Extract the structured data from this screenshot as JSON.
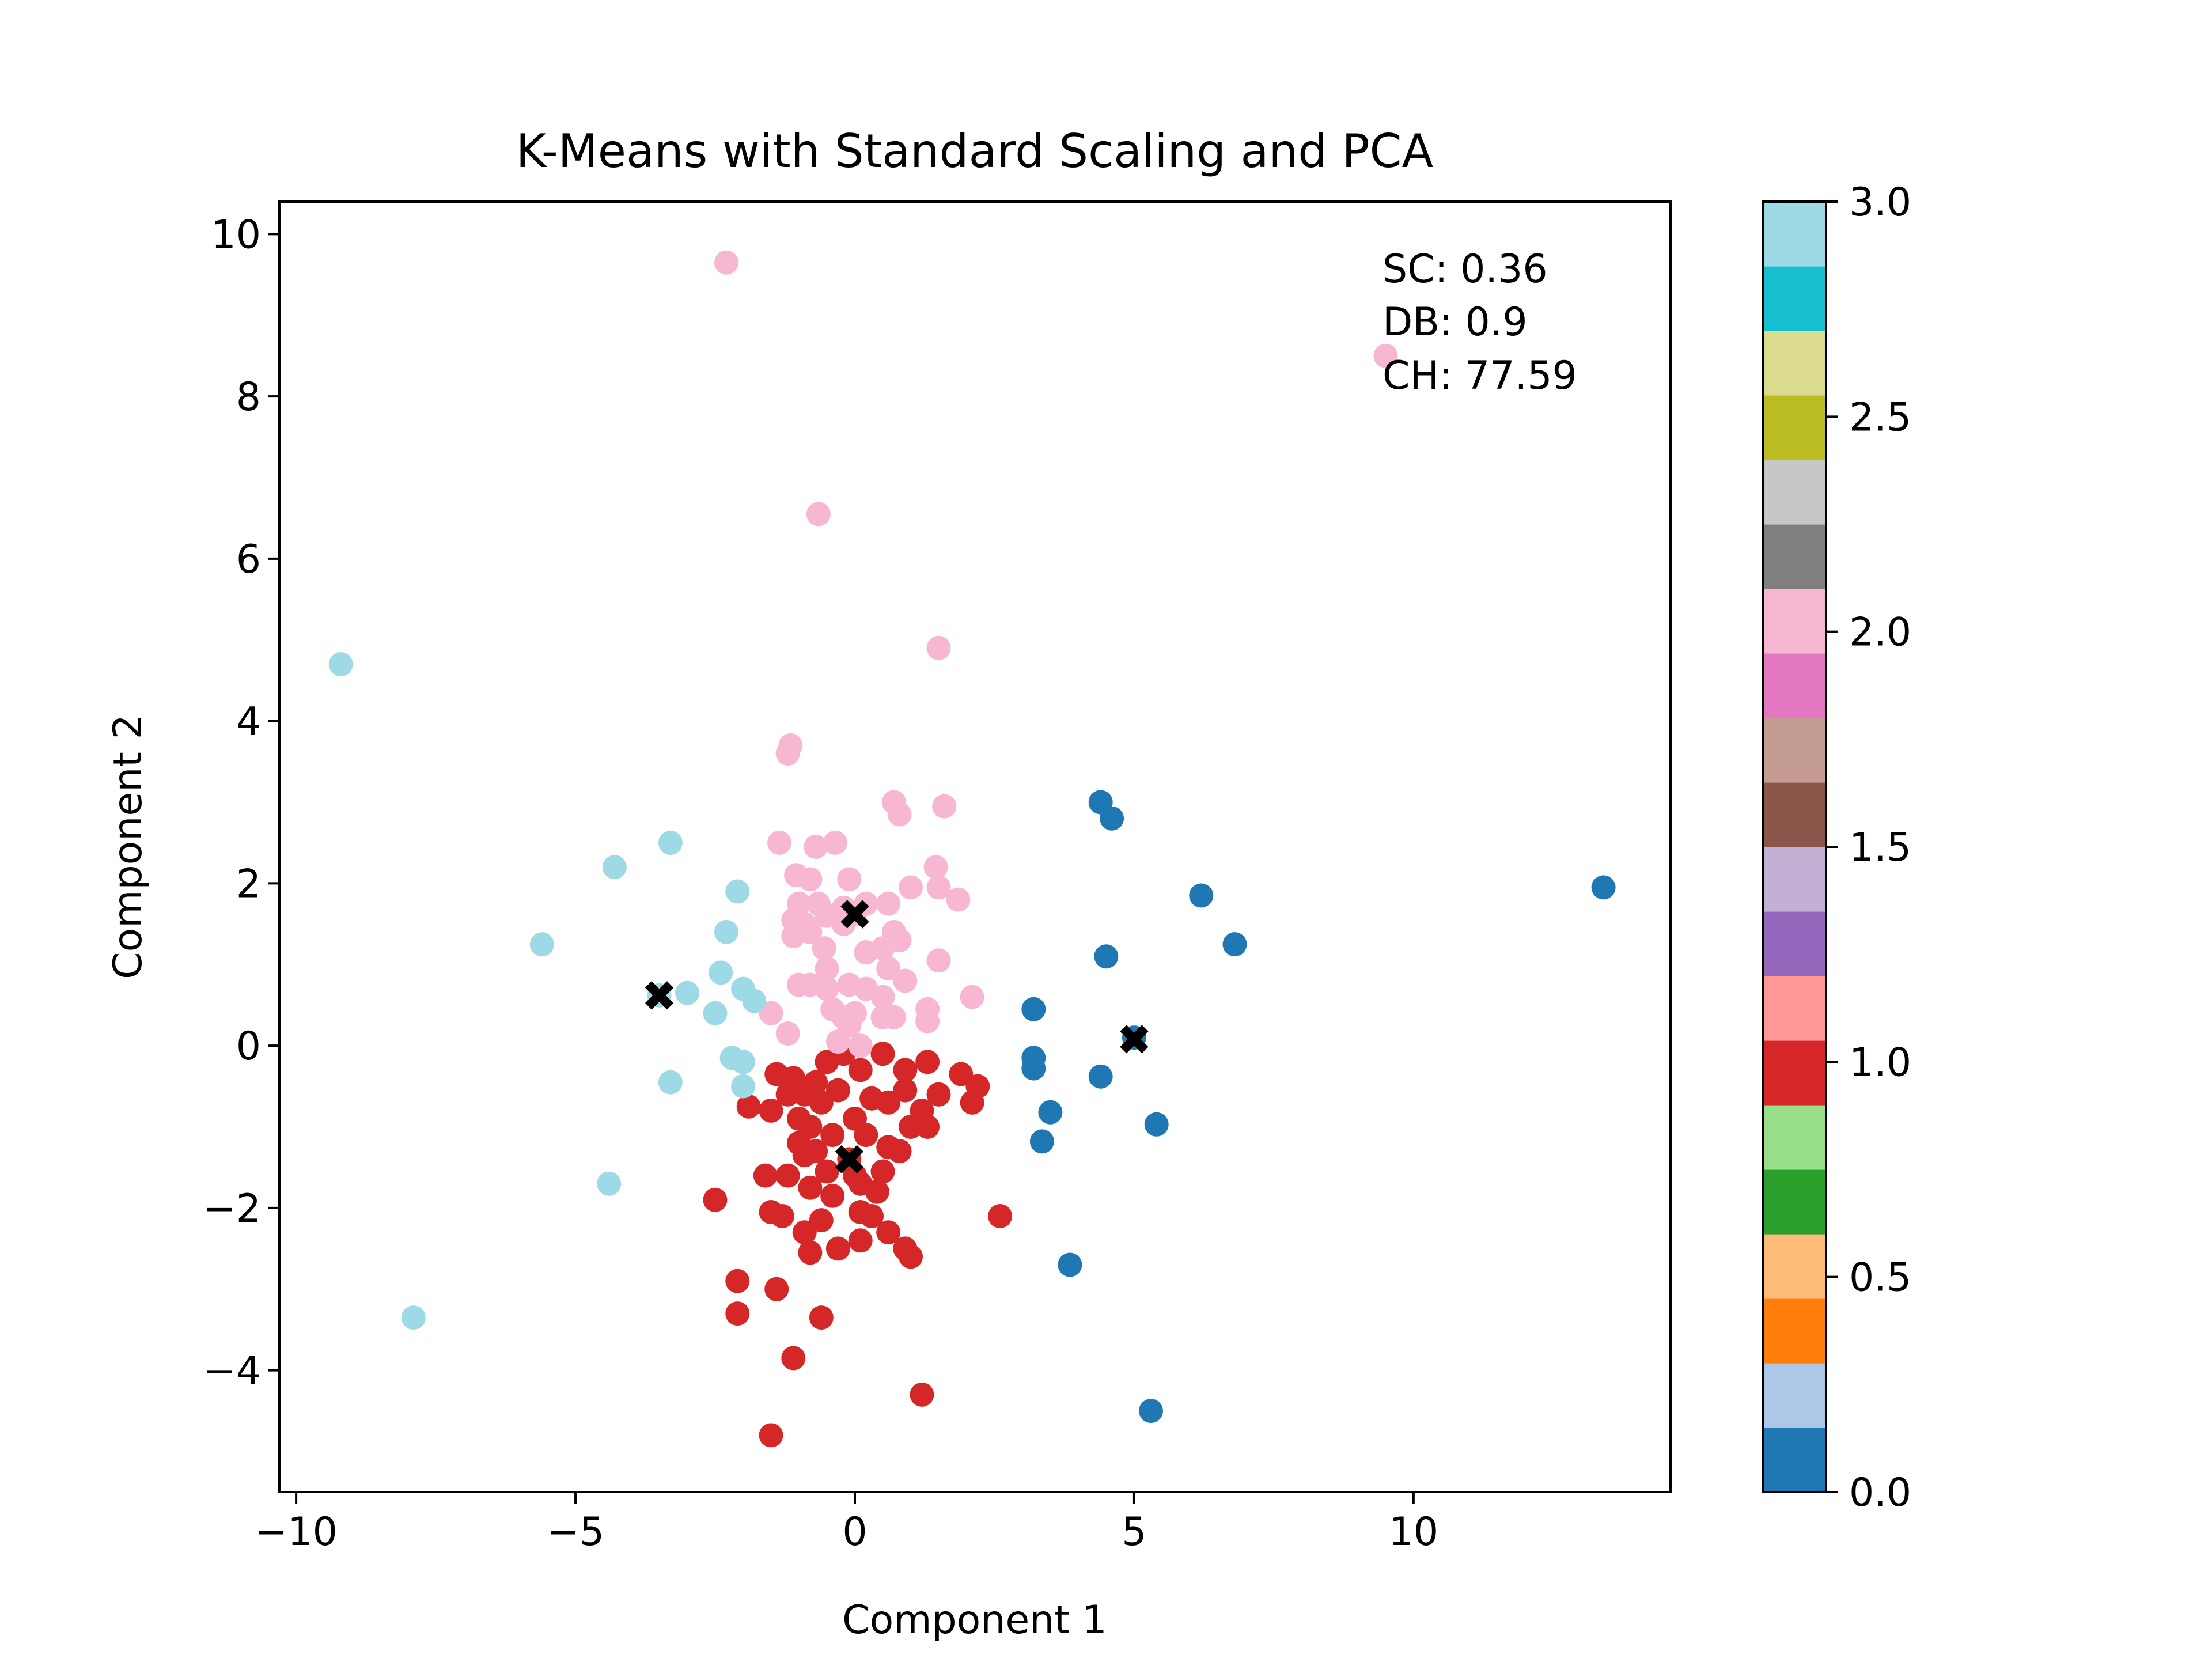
{
  "chart_data": {
    "type": "scatter",
    "title": "K-Means with Standard Scaling and PCA",
    "xlabel": "Component 1",
    "ylabel": "Component 2",
    "xlim": [
      -10.3,
      14.6
    ],
    "ylim": [
      -5.5,
      10.4
    ],
    "xticks": [
      -10,
      -5,
      0,
      5,
      10
    ],
    "yticks": [
      -4,
      -2,
      0,
      2,
      4,
      6,
      8,
      10
    ],
    "grid": false,
    "legend": "none",
    "metrics": [
      "SC: 0.36",
      "DB: 0.9",
      "CH: 77.59"
    ],
    "colorbar": {
      "min": 0.0,
      "max": 3.0,
      "ticks": [
        "0.0",
        "0.5",
        "1.0",
        "1.5",
        "2.0",
        "2.5",
        "3.0"
      ],
      "colormap": "tab20",
      "colors": [
        "#1f77b4",
        "#aec7e8",
        "#ff7f0e",
        "#ffbb78",
        "#2ca02c",
        "#98df8a",
        "#d62728",
        "#ff9896",
        "#9467bd",
        "#c5b0d5",
        "#8c564b",
        "#c49c94",
        "#e377c2",
        "#f7b6d2",
        "#7f7f7f",
        "#c7c7c7",
        "#bcbd22",
        "#dbdb8d",
        "#17becf",
        "#9edae5"
      ]
    },
    "cluster_colors": {
      "0": "#1f77b4",
      "1": "#d62728",
      "2": "#f7b6d2",
      "3": "#9edae5"
    },
    "centroid_color": "#000000",
    "centroids": [
      [
        -3.5,
        0.62
      ],
      [
        -0.1,
        -1.4
      ],
      [
        0.0,
        1.62
      ],
      [
        5.0,
        0.08
      ]
    ],
    "series": [
      {
        "cluster": 0,
        "points": [
          [
            4.4,
            3.0
          ],
          [
            4.6,
            2.8
          ],
          [
            13.4,
            1.95
          ],
          [
            6.2,
            1.85
          ],
          [
            6.8,
            1.25
          ],
          [
            4.5,
            1.1
          ],
          [
            3.2,
            0.45
          ],
          [
            5.0,
            0.1
          ],
          [
            3.2,
            -0.15
          ],
          [
            3.2,
            -0.28
          ],
          [
            4.4,
            -0.38
          ],
          [
            3.5,
            -0.82
          ],
          [
            5.4,
            -0.97
          ],
          [
            3.35,
            -1.18
          ],
          [
            3.85,
            -2.7
          ],
          [
            5.3,
            -4.5
          ]
        ]
      },
      {
        "cluster": 1,
        "points": [
          [
            -1.4,
            -0.35
          ],
          [
            -1.1,
            -0.4
          ],
          [
            -0.9,
            -0.6
          ],
          [
            -0.7,
            -0.45
          ],
          [
            -0.5,
            -0.2
          ],
          [
            -0.2,
            -0.1
          ],
          [
            0.1,
            -0.3
          ],
          [
            0.5,
            -0.1
          ],
          [
            0.9,
            -0.3
          ],
          [
            1.3,
            -0.2
          ],
          [
            1.9,
            -0.35
          ],
          [
            2.2,
            -0.5
          ],
          [
            -1.9,
            -0.75
          ],
          [
            -1.5,
            -0.8
          ],
          [
            -1.2,
            -0.6
          ],
          [
            -1.0,
            -0.9
          ],
          [
            -0.8,
            -1.0
          ],
          [
            -0.6,
            -0.7
          ],
          [
            -0.3,
            -0.55
          ],
          [
            0.0,
            -0.9
          ],
          [
            0.3,
            -0.65
          ],
          [
            0.6,
            -0.7
          ],
          [
            0.9,
            -0.55
          ],
          [
            1.2,
            -0.8
          ],
          [
            1.5,
            -0.6
          ],
          [
            2.1,
            -0.7
          ],
          [
            -1.0,
            -1.2
          ],
          [
            -0.7,
            -1.3
          ],
          [
            -0.4,
            -1.1
          ],
          [
            0.2,
            -1.1
          ],
          [
            0.6,
            -1.25
          ],
          [
            1.0,
            -1.0
          ],
          [
            1.3,
            -1.0
          ],
          [
            -0.9,
            -1.35
          ],
          [
            -0.5,
            -1.55
          ],
          [
            0.1,
            -1.7
          ],
          [
            0.5,
            -1.55
          ],
          [
            0.8,
            -1.3
          ],
          [
            -1.6,
            -1.6
          ],
          [
            -1.2,
            -1.6
          ],
          [
            -0.8,
            -1.75
          ],
          [
            -0.4,
            -1.85
          ],
          [
            0.0,
            -1.6
          ],
          [
            0.4,
            -1.8
          ],
          [
            -2.5,
            -1.9
          ],
          [
            -1.5,
            -2.05
          ],
          [
            -1.3,
            -2.1
          ],
          [
            -0.9,
            -2.3
          ],
          [
            -0.6,
            -2.15
          ],
          [
            0.1,
            -2.05
          ],
          [
            0.3,
            -2.1
          ],
          [
            0.6,
            -2.3
          ],
          [
            2.6,
            -2.1
          ],
          [
            -0.8,
            -2.55
          ],
          [
            -0.3,
            -2.5
          ],
          [
            0.1,
            -2.4
          ],
          [
            0.9,
            -2.5
          ],
          [
            1.0,
            -2.6
          ],
          [
            -2.1,
            -2.9
          ],
          [
            -1.4,
            -3.0
          ],
          [
            -2.1,
            -3.3
          ],
          [
            -0.6,
            -3.35
          ],
          [
            -1.1,
            -3.85
          ],
          [
            1.2,
            -4.3
          ],
          [
            -1.5,
            -4.8
          ],
          [
            -0.1,
            -1.4
          ]
        ]
      },
      {
        "cluster": 2,
        "points": [
          [
            -2.3,
            9.65
          ],
          [
            9.5,
            8.5
          ],
          [
            -0.65,
            6.55
          ],
          [
            1.5,
            4.9
          ],
          [
            -1.15,
            3.7
          ],
          [
            -1.2,
            3.6
          ],
          [
            0.7,
            3.0
          ],
          [
            0.8,
            2.85
          ],
          [
            1.6,
            2.95
          ],
          [
            -1.35,
            2.5
          ],
          [
            -0.7,
            2.45
          ],
          [
            -0.35,
            2.5
          ],
          [
            -1.05,
            2.1
          ],
          [
            -0.8,
            2.05
          ],
          [
            -0.1,
            2.05
          ],
          [
            1.0,
            1.95
          ],
          [
            1.5,
            1.95
          ],
          [
            1.45,
            2.2
          ],
          [
            1.85,
            1.8
          ],
          [
            -1.0,
            1.75
          ],
          [
            -0.65,
            1.75
          ],
          [
            -0.2,
            1.7
          ],
          [
            0.2,
            1.75
          ],
          [
            0.6,
            1.75
          ],
          [
            -1.1,
            1.55
          ],
          [
            -0.9,
            1.5
          ],
          [
            -0.5,
            1.6
          ],
          [
            -0.2,
            1.5
          ],
          [
            -1.1,
            1.35
          ],
          [
            -0.8,
            1.4
          ],
          [
            -0.55,
            1.2
          ],
          [
            0.2,
            1.15
          ],
          [
            0.5,
            1.2
          ],
          [
            0.7,
            1.4
          ],
          [
            0.8,
            1.3
          ],
          [
            1.5,
            1.05
          ],
          [
            -0.5,
            0.95
          ],
          [
            0.6,
            0.95
          ],
          [
            0.9,
            0.8
          ],
          [
            -1.0,
            0.75
          ],
          [
            -0.8,
            0.75
          ],
          [
            -0.5,
            0.7
          ],
          [
            -0.1,
            0.75
          ],
          [
            0.2,
            0.7
          ],
          [
            0.5,
            0.6
          ],
          [
            2.1,
            0.6
          ],
          [
            -1.5,
            0.4
          ],
          [
            -0.4,
            0.45
          ],
          [
            -0.2,
            0.35
          ],
          [
            0.0,
            0.4
          ],
          [
            -0.1,
            0.25
          ],
          [
            0.5,
            0.35
          ],
          [
            0.7,
            0.35
          ],
          [
            1.3,
            0.45
          ],
          [
            1.3,
            0.3
          ],
          [
            -1.2,
            0.15
          ],
          [
            -0.3,
            0.05
          ],
          [
            0.1,
            0.0
          ],
          [
            0.0,
            1.62
          ]
        ]
      },
      {
        "cluster": 3,
        "points": [
          [
            -9.2,
            4.7
          ],
          [
            -3.3,
            2.5
          ],
          [
            -4.3,
            2.2
          ],
          [
            -2.1,
            1.9
          ],
          [
            -5.6,
            1.25
          ],
          [
            -2.3,
            1.4
          ],
          [
            -2.4,
            0.9
          ],
          [
            -3.0,
            0.65
          ],
          [
            -2.0,
            0.7
          ],
          [
            -1.8,
            0.55
          ],
          [
            -2.5,
            0.4
          ],
          [
            -3.5,
            0.62
          ],
          [
            -2.2,
            -0.15
          ],
          [
            -2.0,
            -0.2
          ],
          [
            -3.3,
            -0.45
          ],
          [
            -2.0,
            -0.5
          ],
          [
            -4.4,
            -1.7
          ],
          [
            -7.9,
            -3.35
          ]
        ]
      }
    ]
  }
}
